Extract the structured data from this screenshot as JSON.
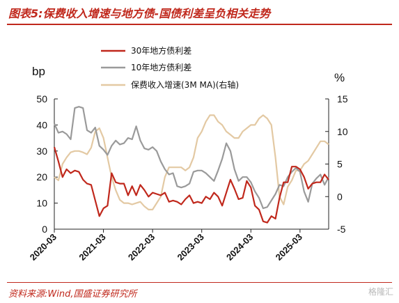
{
  "figure": {
    "title": "图表5:保费收入增速与地方债-国债利差呈负相关走势",
    "source": "资料来源:Wind,国盛证券研究所",
    "watermark": "格隆汇"
  },
  "chart_data": {
    "type": "line",
    "left_axis": {
      "unit_label": "bp",
      "ylim": [
        0,
        50
      ],
      "ticks": [
        "0",
        "10",
        "20",
        "30",
        "40",
        "50"
      ]
    },
    "right_axis": {
      "unit_label": "%",
      "ylim": [
        -5,
        15
      ],
      "ticks": [
        "-5",
        "0",
        "5",
        "10",
        "15"
      ]
    },
    "x_axis": {
      "ticks": [
        "2020-03",
        "2021-03",
        "2022-03",
        "2023-03",
        "2024-03",
        "2025-03"
      ]
    },
    "legend": {
      "placement": "top-center"
    },
    "colors": {
      "spread30": "#c0281c",
      "spread10": "#9a9a9a",
      "premium": "#e3c9a3",
      "title": "#c0281c"
    },
    "series": [
      {
        "key": "spread30",
        "name": "30年地方债利差",
        "axis": "left",
        "values": [
          [
            "2020-03",
            31.5
          ],
          [
            "2020-04",
            26
          ],
          [
            "2020-05",
            20
          ],
          [
            "2020-06",
            23
          ],
          [
            "2020-07",
            21.5
          ],
          [
            "2020-08",
            22.5
          ],
          [
            "2020-09",
            22
          ],
          [
            "2020-10",
            19
          ],
          [
            "2020-11",
            17.5
          ],
          [
            "2020-12",
            17
          ],
          [
            "2021-01",
            11
          ],
          [
            "2021-02",
            5
          ],
          [
            "2021-03",
            8
          ],
          [
            "2021-04",
            9
          ],
          [
            "2021-05",
            21.5
          ],
          [
            "2021-06",
            18
          ],
          [
            "2021-07",
            17.5
          ],
          [
            "2021-08",
            17.5
          ],
          [
            "2021-09",
            13
          ],
          [
            "2021-10",
            16.5
          ],
          [
            "2021-11",
            13
          ],
          [
            "2021-12",
            17
          ],
          [
            "2022-01",
            15
          ],
          [
            "2022-02",
            12.5
          ],
          [
            "2022-03",
            14
          ],
          [
            "2022-04",
            13.5
          ],
          [
            "2022-05",
            13
          ],
          [
            "2022-06",
            14
          ],
          [
            "2022-07",
            10.5
          ],
          [
            "2022-08",
            11
          ],
          [
            "2022-09",
            10.5
          ],
          [
            "2022-10",
            9.5
          ],
          [
            "2022-11",
            11.5
          ],
          [
            "2022-12",
            13
          ],
          [
            "2023-01",
            10
          ],
          [
            "2023-02",
            10.5
          ],
          [
            "2023-03",
            10
          ],
          [
            "2023-04",
            12.5
          ],
          [
            "2023-05",
            11.5
          ],
          [
            "2023-06",
            14
          ],
          [
            "2023-07",
            12.5
          ],
          [
            "2023-08",
            9
          ],
          [
            "2023-09",
            14
          ],
          [
            "2023-10",
            19
          ],
          [
            "2023-11",
            15.5
          ],
          [
            "2023-12",
            11.5
          ],
          [
            "2024-01",
            12
          ],
          [
            "2024-02",
            18.5
          ],
          [
            "2024-03",
            16
          ],
          [
            "2024-04",
            9
          ],
          [
            "2024-05",
            7.5
          ],
          [
            "2024-06",
            3
          ],
          [
            "2024-07",
            2.5
          ],
          [
            "2024-08",
            5
          ],
          [
            "2024-09",
            4
          ],
          [
            "2024-10",
            12
          ],
          [
            "2024-11",
            18
          ],
          [
            "2024-12",
            18
          ],
          [
            "2025-01",
            24
          ],
          [
            "2025-02",
            24
          ],
          [
            "2025-03",
            23
          ],
          [
            "2025-04",
            20
          ],
          [
            "2025-05",
            15.5
          ],
          [
            "2025-06",
            17.5
          ],
          [
            "2025-07",
            18
          ],
          [
            "2025-08",
            18
          ],
          [
            "2025-09",
            21
          ],
          [
            "2025-10",
            19
          ]
        ]
      },
      {
        "key": "spread10",
        "name": "10年地方债利差",
        "axis": "left",
        "values": [
          [
            "2020-03",
            40.5
          ],
          [
            "2020-04",
            37
          ],
          [
            "2020-05",
            37.5
          ],
          [
            "2020-06",
            36.5
          ],
          [
            "2020-07",
            34.5
          ],
          [
            "2020-08",
            46.5
          ],
          [
            "2020-09",
            47
          ],
          [
            "2020-10",
            46.5
          ],
          [
            "2020-11",
            38
          ],
          [
            "2020-12",
            37
          ],
          [
            "2021-01",
            39
          ],
          [
            "2021-02",
            32
          ],
          [
            "2021-03",
            30.5
          ],
          [
            "2021-04",
            28.5
          ],
          [
            "2021-05",
            32
          ],
          [
            "2021-06",
            34
          ],
          [
            "2021-07",
            32.5
          ],
          [
            "2021-08",
            33
          ],
          [
            "2021-09",
            35
          ],
          [
            "2021-10",
            34.5
          ],
          [
            "2021-11",
            39.5
          ],
          [
            "2021-12",
            34
          ],
          [
            "2022-01",
            31
          ],
          [
            "2022-02",
            30.5
          ],
          [
            "2022-03",
            31.5
          ],
          [
            "2022-04",
            30
          ],
          [
            "2022-05",
            26
          ],
          [
            "2022-06",
            23
          ],
          [
            "2022-07",
            21
          ],
          [
            "2022-08",
            21.5
          ],
          [
            "2022-09",
            16.5
          ],
          [
            "2022-10",
            16
          ],
          [
            "2022-11",
            16.5
          ],
          [
            "2022-12",
            17.5
          ],
          [
            "2023-01",
            22
          ],
          [
            "2023-02",
            22.5
          ],
          [
            "2023-03",
            22.5
          ],
          [
            "2023-04",
            21.5
          ],
          [
            "2023-05",
            20
          ],
          [
            "2023-06",
            18.5
          ],
          [
            "2023-07",
            22.5
          ],
          [
            "2023-08",
            27
          ],
          [
            "2023-09",
            33
          ],
          [
            "2023-10",
            30
          ],
          [
            "2023-11",
            23
          ],
          [
            "2023-12",
            18.5
          ],
          [
            "2024-01",
            20
          ],
          [
            "2024-02",
            20
          ],
          [
            "2024-03",
            18
          ],
          [
            "2024-04",
            14.5
          ],
          [
            "2024-05",
            12
          ],
          [
            "2024-06",
            8
          ],
          [
            "2024-07",
            8.5
          ],
          [
            "2024-08",
            11
          ],
          [
            "2024-09",
            13.5
          ],
          [
            "2024-10",
            17
          ],
          [
            "2024-11",
            16.5
          ],
          [
            "2024-12",
            20
          ],
          [
            "2025-01",
            22
          ],
          [
            "2025-02",
            23.5
          ],
          [
            "2025-03",
            22
          ],
          [
            "2025-04",
            14.5
          ],
          [
            "2025-05",
            10.5
          ],
          [
            "2025-06",
            17.5
          ],
          [
            "2025-07",
            19.5
          ],
          [
            "2025-08",
            21
          ],
          [
            "2025-09",
            17
          ],
          [
            "2025-10",
            20
          ]
        ]
      },
      {
        "key": "premium",
        "name": "保费收入增速(3M MA)(右轴)",
        "axis": "right",
        "values": [
          [
            "2020-03",
            3
          ],
          [
            "2020-04",
            2.5
          ],
          [
            "2020-05",
            5
          ],
          [
            "2020-06",
            6
          ],
          [
            "2020-07",
            6.8
          ],
          [
            "2020-08",
            7
          ],
          [
            "2020-09",
            7
          ],
          [
            "2020-10",
            6.8
          ],
          [
            "2020-11",
            6.5
          ],
          [
            "2020-12",
            7.5
          ],
          [
            "2021-01",
            10
          ],
          [
            "2021-02",
            10.5
          ],
          [
            "2021-03",
            9
          ],
          [
            "2021-04",
            6
          ],
          [
            "2021-05",
            3
          ],
          [
            "2021-06",
            1
          ],
          [
            "2021-07",
            -0.5
          ],
          [
            "2021-08",
            -1
          ],
          [
            "2021-09",
            -1
          ],
          [
            "2021-10",
            -1.2
          ],
          [
            "2021-11",
            -1
          ],
          [
            "2021-12",
            -0.8
          ],
          [
            "2022-01",
            -1.5
          ],
          [
            "2022-02",
            -2
          ],
          [
            "2022-03",
            -2
          ],
          [
            "2022-04",
            -1
          ],
          [
            "2022-05",
            0
          ],
          [
            "2022-06",
            3
          ],
          [
            "2022-07",
            4.5
          ],
          [
            "2022-08",
            4.5
          ],
          [
            "2022-09",
            4.5
          ],
          [
            "2022-10",
            4.5
          ],
          [
            "2022-11",
            4
          ],
          [
            "2022-12",
            4.5
          ],
          [
            "2023-01",
            6
          ],
          [
            "2023-02",
            9
          ],
          [
            "2023-03",
            10
          ],
          [
            "2023-04",
            11.5
          ],
          [
            "2023-05",
            12.5
          ],
          [
            "2023-06",
            12.5
          ],
          [
            "2023-07",
            11.5
          ],
          [
            "2023-08",
            11
          ],
          [
            "2023-09",
            10
          ],
          [
            "2023-10",
            9.5
          ],
          [
            "2023-11",
            9
          ],
          [
            "2023-12",
            9
          ],
          [
            "2024-01",
            10
          ],
          [
            "2024-02",
            10.5
          ],
          [
            "2024-03",
            11
          ],
          [
            "2024-04",
            11
          ],
          [
            "2024-05",
            12
          ],
          [
            "2024-06",
            12.5
          ],
          [
            "2024-07",
            12
          ],
          [
            "2024-08",
            11
          ],
          [
            "2024-09",
            6
          ],
          [
            "2024-10",
            0
          ],
          [
            "2024-11",
            -1.2
          ],
          [
            "2024-12",
            1.5
          ],
          [
            "2025-01",
            2.5
          ],
          [
            "2025-02",
            4
          ],
          [
            "2025-03",
            4
          ],
          [
            "2025-04",
            5
          ],
          [
            "2025-05",
            5.5
          ],
          [
            "2025-06",
            6.5
          ],
          [
            "2025-07",
            7.5
          ],
          [
            "2025-08",
            8.5
          ],
          [
            "2025-09",
            8.5
          ],
          [
            "2025-10",
            8
          ]
        ]
      }
    ]
  }
}
